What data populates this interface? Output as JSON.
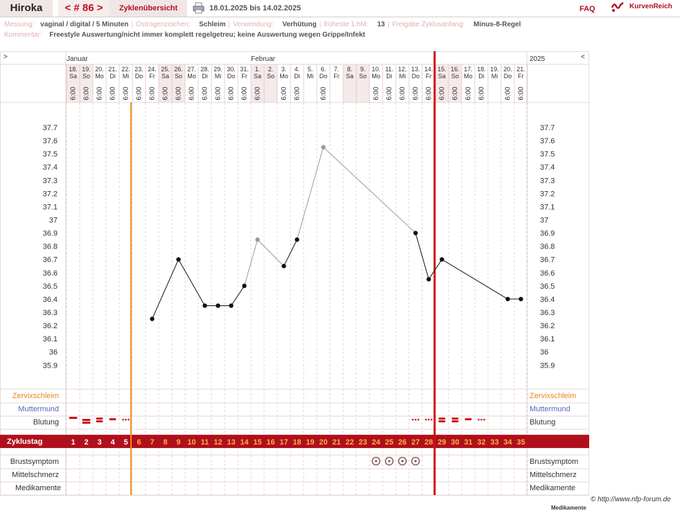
{
  "header": {
    "name": "Hiroka",
    "cycle_nav": "< # 86 >",
    "overview_label": "Zyklenübersicht",
    "date_range": "18.01.2025 bis 14.02.2025",
    "faq": "FAQ",
    "brand": "KurvenReich"
  },
  "meta": {
    "measurement_label": "Messung:",
    "measurement_value": "vaginal / digital / 5 Minuten",
    "estrogen_label": "Östrogenzeichen:",
    "estrogen_value": "Schleim",
    "usage_label": "Verwendung:",
    "usage_value": "Verhütung",
    "earliest_label": "früheste 1.hM:",
    "earliest_value": "13",
    "release_label": "Freigabe Zyklusanfang:",
    "release_value": "Minus-8-Regel",
    "comment_label": "Kommentar:",
    "comment_value": "Freestyle Auswertung/nicht immer komplett regelgetreu; keine Auswertung wegen Grippe/Infekt"
  },
  "chart_head": {
    "left_arrow": ">",
    "right_arrow": "<",
    "month_jan": "Januar",
    "month_feb": "Februar",
    "year": "2025"
  },
  "days": [
    {
      "date": "18.",
      "wd": "Sa",
      "time": "6:00",
      "cycle": "1",
      "weekend": true
    },
    {
      "date": "19.",
      "wd": "So",
      "time": "6:00",
      "cycle": "2",
      "weekend": true
    },
    {
      "date": "20.",
      "wd": "Mo",
      "time": "6:00",
      "cycle": "3",
      "weekend": false
    },
    {
      "date": "21.",
      "wd": "Di",
      "time": "6:00",
      "cycle": "4",
      "weekend": false
    },
    {
      "date": "22.",
      "wd": "Mi",
      "time": "6:00",
      "cycle": "5",
      "weekend": false
    },
    {
      "date": "23.",
      "wd": "Do",
      "time": "6:00",
      "cycle": "6",
      "weekend": false
    },
    {
      "date": "24.",
      "wd": "Fr",
      "time": "6:00",
      "cycle": "7",
      "weekend": false
    },
    {
      "date": "25.",
      "wd": "Sa",
      "time": "6:00",
      "cycle": "8",
      "weekend": true
    },
    {
      "date": "26.",
      "wd": "So",
      "time": "6:00",
      "cycle": "9",
      "weekend": true
    },
    {
      "date": "27.",
      "wd": "Mo",
      "time": "6:00",
      "cycle": "10",
      "weekend": false
    },
    {
      "date": "28.",
      "wd": "Di",
      "time": "6:00",
      "cycle": "11",
      "weekend": false
    },
    {
      "date": "29.",
      "wd": "Mi",
      "time": "6:00",
      "cycle": "12",
      "weekend": false
    },
    {
      "date": "30.",
      "wd": "Do",
      "time": "6:00",
      "cycle": "13",
      "weekend": false
    },
    {
      "date": "31.",
      "wd": "Fr",
      "time": "6:00",
      "cycle": "14",
      "weekend": false
    },
    {
      "date": "1.",
      "wd": "Sa",
      "time": "6:00",
      "cycle": "15",
      "weekend": true
    },
    {
      "date": "2.",
      "wd": "So",
      "time": "",
      "cycle": "16",
      "weekend": true
    },
    {
      "date": "3.",
      "wd": "Mo",
      "time": "6:00",
      "cycle": "17",
      "weekend": false
    },
    {
      "date": "4.",
      "wd": "Di",
      "time": "6:00",
      "cycle": "18",
      "weekend": false
    },
    {
      "date": "5.",
      "wd": "Mi",
      "time": "",
      "cycle": "19",
      "weekend": false
    },
    {
      "date": "6.",
      "wd": "Do",
      "time": "6:00",
      "cycle": "20",
      "weekend": false
    },
    {
      "date": "7.",
      "wd": "Fr",
      "time": "",
      "cycle": "21",
      "weekend": false
    },
    {
      "date": "8.",
      "wd": "Sa",
      "time": "",
      "cycle": "22",
      "weekend": true
    },
    {
      "date": "9.",
      "wd": "So",
      "time": "",
      "cycle": "23",
      "weekend": true
    },
    {
      "date": "10.",
      "wd": "Mo",
      "time": "6:00",
      "cycle": "24",
      "weekend": false
    },
    {
      "date": "11.",
      "wd": "Di",
      "time": "6:00",
      "cycle": "25",
      "weekend": false
    },
    {
      "date": "12.",
      "wd": "Mi",
      "time": "6:00",
      "cycle": "26",
      "weekend": false
    },
    {
      "date": "13.",
      "wd": "Do",
      "time": "6:00",
      "cycle": "27",
      "weekend": false
    },
    {
      "date": "14.",
      "wd": "Fr",
      "time": "6:00",
      "cycle": "28",
      "weekend": false
    },
    {
      "date": "15.",
      "wd": "Sa",
      "time": "6:00",
      "cycle": "29",
      "weekend": true
    },
    {
      "date": "16.",
      "wd": "So",
      "time": "6:00",
      "cycle": "30",
      "weekend": true
    },
    {
      "date": "17.",
      "wd": "Mo",
      "time": "6:00",
      "cycle": "31",
      "weekend": false
    },
    {
      "date": "18.",
      "wd": "Di",
      "time": "6:00",
      "cycle": "32",
      "weekend": false
    },
    {
      "date": "19.",
      "wd": "Mi",
      "time": "",
      "cycle": "33",
      "weekend": false
    },
    {
      "date": "20.",
      "wd": "Do",
      "time": "6:00",
      "cycle": "34",
      "weekend": false
    },
    {
      "date": "21.",
      "wd": "Fr",
      "time": "6:00",
      "cycle": "35",
      "weekend": false
    }
  ],
  "row_labels": {
    "zervix": "Zervixschleim",
    "muttermund": "Muttermund",
    "blutung": "Blutung",
    "zyklustag": "Zyklustag",
    "brust": "Brustsymptom",
    "mittel": "Mittelschmerz",
    "medi": "Medikamente"
  },
  "chart_data": {
    "type": "line",
    "ylim": [
      35.8,
      37.8
    ],
    "yticks": [
      "37.7",
      "37.6",
      "37.5",
      "37.4",
      "37.3",
      "37.2",
      "37.1",
      "37",
      "36.9",
      "36.8",
      "36.7",
      "36.6",
      "36.5",
      "36.4",
      "36.3",
      "36.2",
      "36.1",
      "36",
      "35.9"
    ],
    "temperatures": [
      null,
      null,
      null,
      null,
      null,
      null,
      36.25,
      null,
      36.7,
      null,
      36.35,
      36.35,
      36.35,
      36.5,
      36.85,
      null,
      36.65,
      36.85,
      null,
      37.55,
      null,
      null,
      null,
      null,
      null,
      null,
      36.9,
      36.55,
      36.7,
      null,
      null,
      null,
      null,
      36.4,
      36.4
    ],
    "excluded_cycle_days": [
      15,
      20
    ],
    "coverline_after_cycle_day": 5,
    "cycle_marker_after_cycle_day": 28,
    "bleeding": [
      "heavy",
      "very-heavy",
      "strong",
      "medium",
      "spotting",
      null,
      null,
      null,
      null,
      null,
      null,
      null,
      null,
      null,
      null,
      null,
      null,
      null,
      null,
      null,
      null,
      null,
      null,
      null,
      null,
      null,
      "spotting",
      "spotting",
      "strong",
      "strong",
      "medium",
      "spotting",
      null,
      null,
      null
    ],
    "breast_symptom_cycle_days": [
      24,
      25,
      26,
      27
    ],
    "colors": {
      "accent": "#b0101c",
      "orange": "#f08c1e",
      "zervix": "#e8861c",
      "muttermund": "#5566bb",
      "grid": "#e4d0d0"
    }
  },
  "footer": {
    "copyright": "© http://www.nfp-forum.de",
    "cutoff": "Medikamente"
  }
}
